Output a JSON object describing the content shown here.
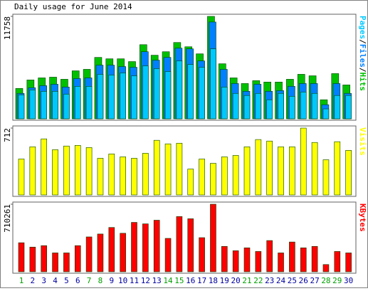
{
  "chart_data": [
    {
      "type": "bar",
      "title": "Daily usage for June 2014",
      "categories": [
        "1",
        "2",
        "3",
        "4",
        "5",
        "6",
        "7",
        "8",
        "9",
        "10",
        "11",
        "12",
        "13",
        "14",
        "15",
        "16",
        "17",
        "18",
        "19",
        "20",
        "21",
        "22",
        "23",
        "24",
        "25",
        "26",
        "27",
        "28",
        "29",
        "30"
      ],
      "category_colors": [
        "#00a000",
        "#0000a0",
        "#0000a0",
        "#0000a0",
        "#0000a0",
        "#0000a0",
        "#00a000",
        "#00a000",
        "#0000a0",
        "#0000a0",
        "#0000a0",
        "#0000a0",
        "#0000a0",
        "#00a000",
        "#00a000",
        "#0000a0",
        "#0000a0",
        "#0000a0",
        "#0000a0",
        "#0000a0",
        "#00a000",
        "#00a000",
        "#0000a0",
        "#0000a0",
        "#0000a0",
        "#0000a0",
        "#0000a0",
        "#00a000",
        "#00a000",
        "#0000a0"
      ],
      "legend_separator": "/",
      "ylim": [
        0,
        11758
      ],
      "yticks": [
        11758
      ],
      "series": [
        {
          "name": "Hits",
          "color": "#00c000",
          "values": [
            3490,
            4460,
            4700,
            4780,
            4540,
            5510,
            5680,
            7050,
            6890,
            6890,
            6570,
            8510,
            7300,
            7700,
            8760,
            8270,
            7460,
            11758,
            6320,
            4700,
            4050,
            4380,
            4220,
            4220,
            4540,
            5110,
            4940,
            2190,
            5190,
            3890
          ]
        },
        {
          "name": "Files",
          "color": "#0080ff",
          "values": [
            2920,
            3570,
            3810,
            3970,
            3650,
            4620,
            4700,
            6160,
            6160,
            6000,
            5920,
            7700,
            6730,
            7050,
            8110,
            8030,
            6650,
            11110,
            5680,
            4050,
            3160,
            3970,
            3160,
            3240,
            3730,
            4050,
            4050,
            1620,
            4050,
            2920
          ]
        },
        {
          "name": "Pages",
          "color": "#00c8ff",
          "values": [
            2760,
            3320,
            3160,
            3160,
            2840,
            3730,
            3730,
            5110,
            5030,
            5270,
            4940,
            6080,
            5760,
            5430,
            6650,
            6240,
            5920,
            8030,
            3650,
            2920,
            2680,
            2920,
            2190,
            2920,
            2590,
            3080,
            2920,
            1140,
            2680,
            2680
          ]
        }
      ]
    },
    {
      "type": "bar",
      "ylim": [
        0,
        712
      ],
      "yticks": [
        712
      ],
      "series": [
        {
          "name": "Visits",
          "color": "#ffff00",
          "values": [
            383,
            513,
            597,
            482,
            521,
            528,
            505,
            391,
            437,
            406,
            391,
            444,
            582,
            544,
            551,
            276,
            383,
            337,
            406,
            421,
            513,
            590,
            574,
            513,
            513,
            712,
            559,
            375,
            567,
            475
          ]
        }
      ]
    },
    {
      "type": "bar",
      "ylim": [
        0,
        710261
      ],
      "yticks": [
        710261
      ],
      "series": [
        {
          "name": "KBytes",
          "color": "#ff0000",
          "values": [
            305500,
            259700,
            274900,
            198600,
            198600,
            274900,
            366600,
            397100,
            465900,
            404800,
            519300,
            504000,
            542200,
            351300,
            580400,
            557500,
            358900,
            710261,
            267300,
            221500,
            252000,
            213800,
            328400,
            198600,
            313100,
            252000,
            267300,
            76400,
            213800,
            198600
          ]
        }
      ]
    }
  ]
}
